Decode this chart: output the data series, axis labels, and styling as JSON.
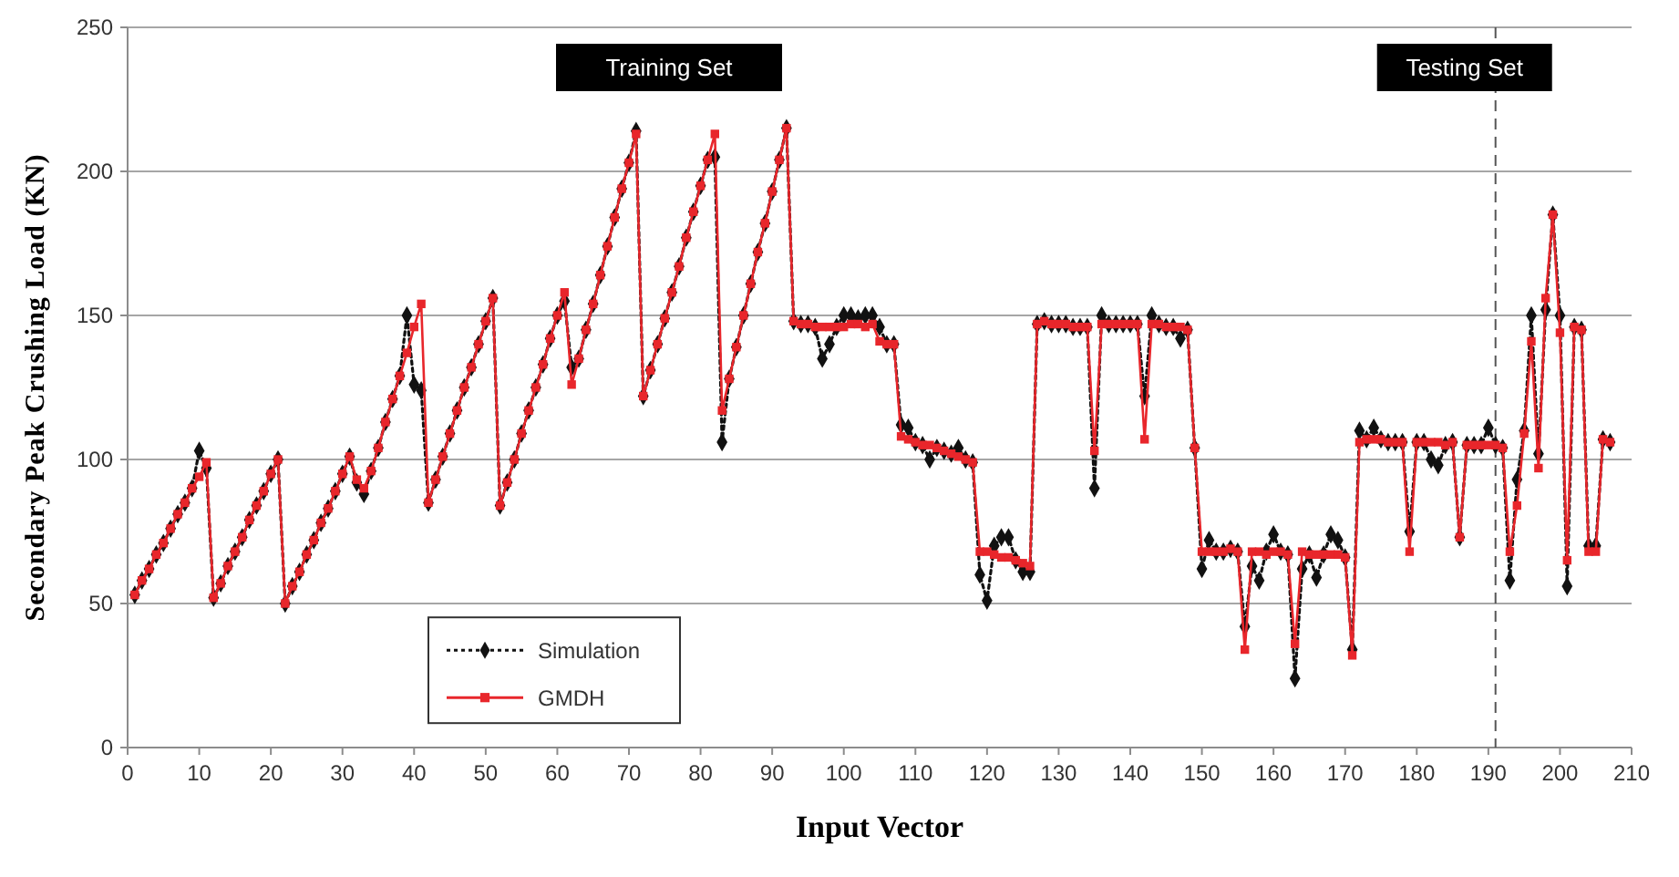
{
  "chart_data": {
    "type": "line",
    "xlabel": "Input Vector",
    "ylabel": "Secondary Peak Crushing Load (KN)",
    "xlim": [
      0,
      210
    ],
    "xticks": [
      0,
      10,
      20,
      30,
      40,
      50,
      60,
      70,
      80,
      90,
      100,
      110,
      120,
      130,
      140,
      150,
      160,
      170,
      180,
      190,
      200,
      210
    ],
    "ylim": [
      0,
      250
    ],
    "yticks": [
      0,
      50,
      100,
      150,
      200,
      250
    ],
    "grid": "y",
    "legend": "bottom left",
    "annotations": [
      "Training Set"
    ],
    "ref_lines": [
      {
        "axis": "x",
        "value": 191,
        "label": "Testing Set",
        "color": "#555555",
        "line_style": "dashed"
      }
    ],
    "series": [
      {
        "name": "Simulation",
        "color": "#111111",
        "line_style": "dotted",
        "marker": "diamond",
        "x": [
          1,
          2,
          3,
          4,
          5,
          6,
          7,
          8,
          9,
          10,
          11,
          12,
          13,
          14,
          15,
          16,
          17,
          18,
          19,
          20,
          21,
          22,
          23,
          24,
          25,
          26,
          27,
          28,
          29,
          30,
          31,
          32,
          33,
          34,
          35,
          36,
          37,
          38,
          39,
          40,
          41,
          42,
          43,
          44,
          45,
          46,
          47,
          48,
          49,
          50,
          51,
          52,
          53,
          54,
          55,
          56,
          57,
          58,
          59,
          60,
          61,
          62,
          63,
          64,
          65,
          66,
          67,
          68,
          69,
          70,
          71,
          72,
          73,
          74,
          75,
          76,
          77,
          78,
          79,
          80,
          81,
          82,
          83,
          84,
          85,
          86,
          87,
          88,
          89,
          90,
          91,
          92,
          93,
          94,
          95,
          96,
          97,
          98,
          99,
          100,
          101,
          102,
          103,
          104,
          105,
          106,
          107,
          108,
          109,
          110,
          111,
          112,
          113,
          114,
          115,
          116,
          117,
          118,
          119,
          120,
          121,
          122,
          123,
          124,
          125,
          126,
          127,
          128,
          129,
          130,
          131,
          132,
          133,
          134,
          135,
          136,
          137,
          138,
          139,
          140,
          141,
          142,
          143,
          144,
          145,
          146,
          147,
          148,
          149,
          150,
          151,
          152,
          153,
          154,
          155,
          156,
          157,
          158,
          159,
          160,
          161,
          162,
          163,
          164,
          165,
          166,
          167,
          168,
          169,
          170,
          171,
          172,
          173,
          174,
          175,
          176,
          177,
          178,
          179,
          180,
          181,
          182,
          183,
          184,
          185,
          186,
          187,
          188,
          189,
          190,
          191,
          192,
          193,
          194,
          195,
          196,
          197,
          198,
          199,
          200,
          201,
          202,
          203,
          204,
          205,
          206,
          207
        ],
        "values": [
          53,
          58,
          62,
          67,
          71,
          76,
          81,
          85,
          90,
          103,
          97,
          52,
          57,
          63,
          68,
          73,
          79,
          84,
          89,
          95,
          100,
          50,
          56,
          61,
          67,
          72,
          78,
          83,
          89,
          95,
          101,
          92,
          88,
          96,
          104,
          113,
          121,
          129,
          150,
          126,
          124,
          85,
          93,
          101,
          109,
          117,
          125,
          132,
          140,
          148,
          156,
          84,
          92,
          100,
          109,
          117,
          125,
          133,
          142,
          150,
          155,
          132,
          135,
          145,
          154,
          164,
          174,
          184,
          194,
          203,
          214,
          122,
          131,
          140,
          149,
          158,
          167,
          177,
          186,
          195,
          204,
          205,
          106,
          128,
          139,
          150,
          161,
          172,
          182,
          193,
          204,
          215,
          148,
          147,
          147,
          146,
          135,
          140,
          146,
          150,
          150,
          149,
          150,
          150,
          146,
          140,
          140,
          112,
          111,
          106,
          105,
          100,
          104,
          103,
          102,
          104,
          100,
          99,
          60,
          51,
          70,
          73,
          73,
          65,
          61,
          61,
          147,
          148,
          147,
          147,
          147,
          146,
          146,
          146,
          90,
          150,
          147,
          147,
          147,
          147,
          147,
          122,
          150,
          147,
          146,
          146,
          142,
          145,
          104,
          62,
          72,
          68,
          68,
          69,
          68,
          42,
          63,
          58,
          68,
          74,
          68,
          67,
          24,
          62,
          67,
          59,
          67,
          74,
          72,
          66,
          34,
          110,
          107,
          111,
          107,
          106,
          106,
          106,
          75,
          106,
          106,
          100,
          98,
          105,
          106,
          73,
          105,
          105,
          105,
          111,
          105,
          104,
          58,
          93,
          110,
          150,
          102,
          152,
          185,
          150,
          56,
          146,
          145,
          70,
          70,
          107,
          106
        ]
      },
      {
        "name": "GMDH",
        "color": "#e8262b",
        "line_style": "solid",
        "marker": "square",
        "x": [
          1,
          2,
          3,
          4,
          5,
          6,
          7,
          8,
          9,
          10,
          11,
          12,
          13,
          14,
          15,
          16,
          17,
          18,
          19,
          20,
          21,
          22,
          23,
          24,
          25,
          26,
          27,
          28,
          29,
          30,
          31,
          32,
          33,
          34,
          35,
          36,
          37,
          38,
          39,
          40,
          41,
          42,
          43,
          44,
          45,
          46,
          47,
          48,
          49,
          50,
          51,
          52,
          53,
          54,
          55,
          56,
          57,
          58,
          59,
          60,
          61,
          62,
          63,
          64,
          65,
          66,
          67,
          68,
          69,
          70,
          71,
          72,
          73,
          74,
          75,
          76,
          77,
          78,
          79,
          80,
          81,
          82,
          83,
          84,
          85,
          86,
          87,
          88,
          89,
          90,
          91,
          92,
          93,
          94,
          95,
          96,
          97,
          98,
          99,
          100,
          101,
          102,
          103,
          104,
          105,
          106,
          107,
          108,
          109,
          110,
          111,
          112,
          113,
          114,
          115,
          116,
          117,
          118,
          119,
          120,
          121,
          122,
          123,
          124,
          125,
          126,
          127,
          128,
          129,
          130,
          131,
          132,
          133,
          134,
          135,
          136,
          137,
          138,
          139,
          140,
          141,
          142,
          143,
          144,
          145,
          146,
          147,
          148,
          149,
          150,
          151,
          152,
          153,
          154,
          155,
          156,
          157,
          158,
          159,
          160,
          161,
          162,
          163,
          164,
          165,
          166,
          167,
          168,
          169,
          170,
          171,
          172,
          173,
          174,
          175,
          176,
          177,
          178,
          179,
          180,
          181,
          182,
          183,
          184,
          185,
          186,
          187,
          188,
          189,
          190,
          191,
          192,
          193,
          194,
          195,
          196,
          197,
          198,
          199,
          200,
          201,
          202,
          203,
          204,
          205,
          206,
          207
        ],
        "values": [
          53,
          58,
          62,
          67,
          71,
          76,
          81,
          85,
          90,
          94,
          99,
          52,
          57,
          63,
          68,
          73,
          79,
          84,
          89,
          95,
          100,
          50,
          56,
          61,
          67,
          72,
          78,
          83,
          89,
          95,
          101,
          93,
          90,
          96,
          104,
          113,
          121,
          129,
          137,
          146,
          154,
          85,
          93,
          101,
          109,
          117,
          125,
          132,
          140,
          148,
          156,
          84,
          92,
          100,
          109,
          117,
          125,
          133,
          142,
          150,
          158,
          126,
          135,
          145,
          154,
          164,
          174,
          184,
          194,
          203,
          213,
          122,
          131,
          140,
          149,
          158,
          167,
          177,
          186,
          195,
          204,
          213,
          117,
          128,
          139,
          150,
          161,
          172,
          182,
          193,
          204,
          215,
          148,
          147,
          147,
          146,
          146,
          146,
          146,
          146,
          147,
          147,
          146,
          147,
          141,
          140,
          140,
          108,
          107,
          106,
          105,
          105,
          104,
          103,
          102,
          101,
          100,
          99,
          68,
          68,
          67,
          66,
          66,
          65,
          64,
          63,
          147,
          148,
          147,
          147,
          147,
          146,
          146,
          146,
          103,
          147,
          147,
          147,
          147,
          147,
          147,
          107,
          147,
          147,
          146,
          146,
          146,
          145,
          104,
          68,
          68,
          68,
          68,
          69,
          68,
          34,
          68,
          68,
          67,
          68,
          68,
          67,
          36,
          68,
          67,
          67,
          67,
          67,
          67,
          66,
          32,
          106,
          107,
          107,
          107,
          106,
          106,
          106,
          68,
          106,
          106,
          106,
          106,
          105,
          106,
          73,
          105,
          105,
          105,
          105,
          105,
          104,
          68,
          84,
          109,
          141,
          97,
          156,
          185,
          144,
          65,
          146,
          145,
          68,
          68,
          107,
          106
        ]
      }
    ]
  }
}
